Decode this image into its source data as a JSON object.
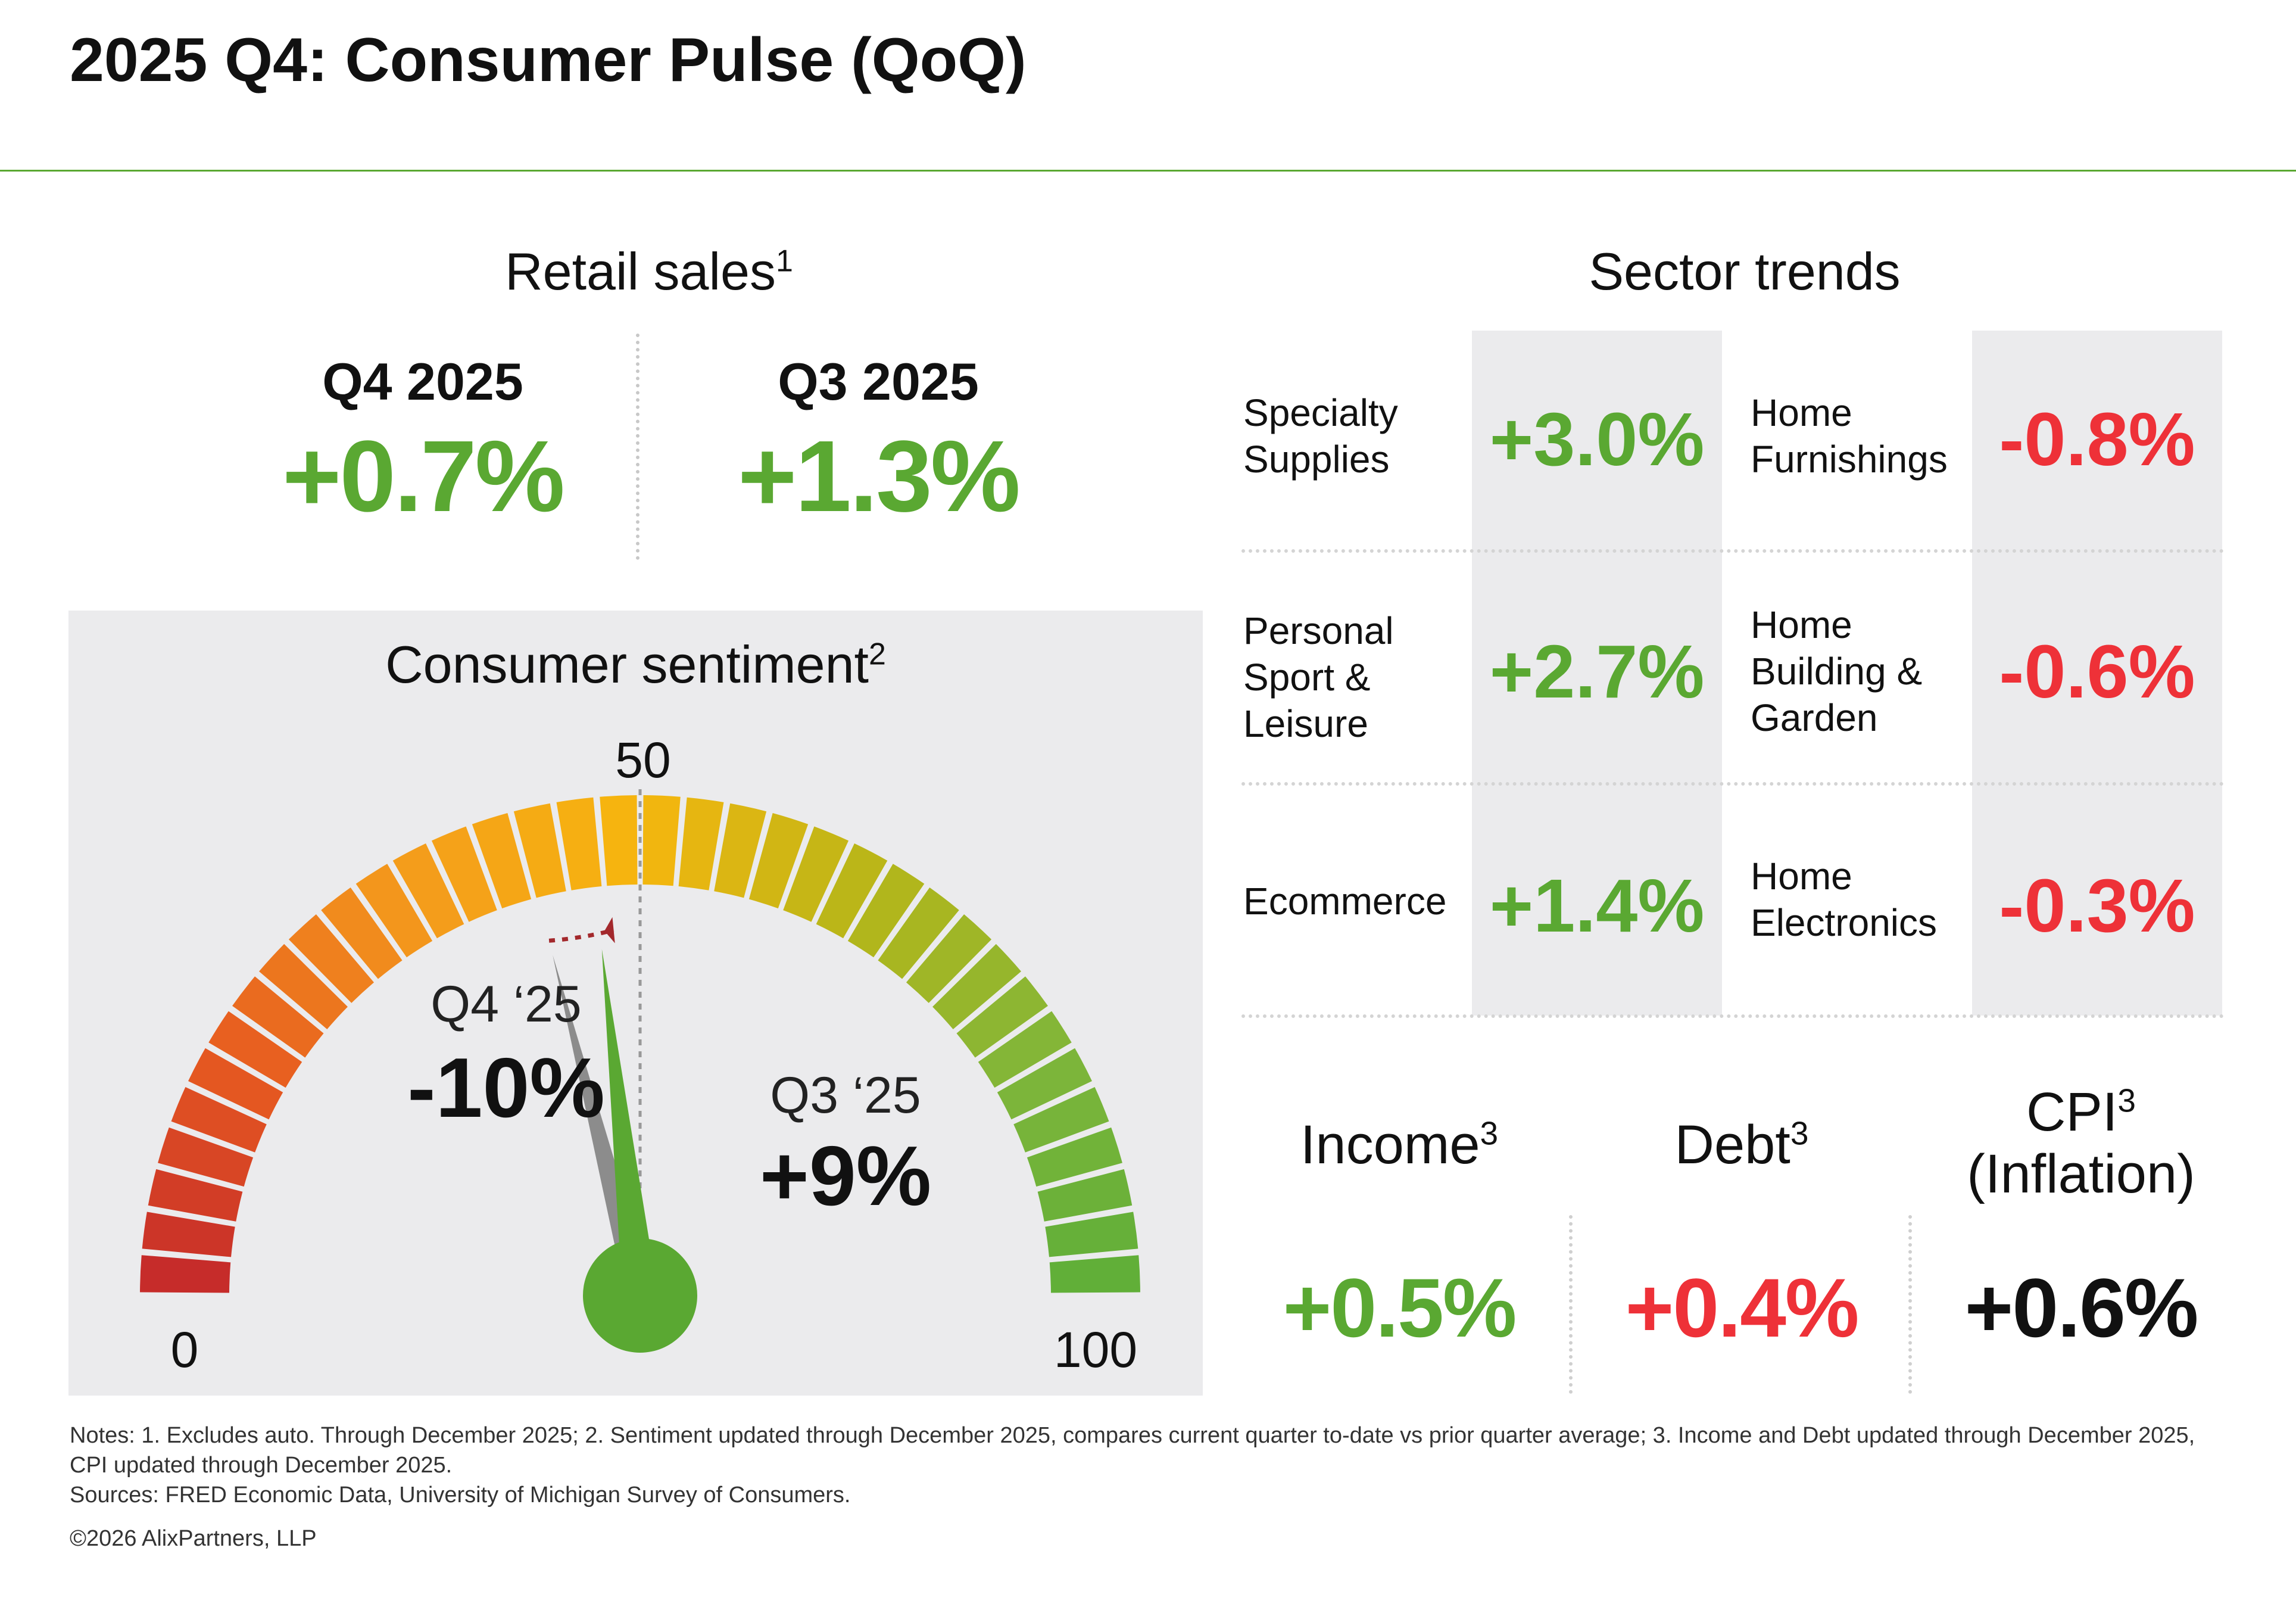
{
  "title": "2025 Q4: Consumer Pulse (QoQ)",
  "colors": {
    "positive": "#5aa832",
    "negative": "#ee3138",
    "neutral": "#111111",
    "rule": "#5aa832",
    "panel": "#ebebed",
    "gauge_gradient": [
      "#c3282b",
      "#e75b20",
      "#f49b1c",
      "#f6b60e",
      "#b6b619",
      "#7fb63a",
      "#5eae38"
    ]
  },
  "retail": {
    "title": "Retail sales",
    "title_sup": "1",
    "q4": {
      "period": "Q4 2025",
      "value": "+0.7%"
    },
    "q3": {
      "period": "Q3 2025",
      "value": "+1.3%"
    }
  },
  "sentiment": {
    "title": "Consumer sentiment",
    "title_sup": "2",
    "q4": {
      "label": "Q4 ‘25",
      "value": "-10%"
    },
    "q3": {
      "label": "Q3 ‘25",
      "value": "+9%"
    }
  },
  "sector": {
    "title": "Sector trends",
    "rows": [
      {
        "left_name": "Specialty\nSupplies",
        "left_value": "+3.0%",
        "right_name": "Home\nFurnishings",
        "right_value": "-0.8%"
      },
      {
        "left_name": "Personal\nSport &\nLeisure",
        "left_value": "+2.7%",
        "right_name": "Home\nBuilding &\nGarden",
        "right_value": "-0.6%"
      },
      {
        "left_name": "Ecommerce",
        "left_value": "+1.4%",
        "right_name": "Home\nElectronics",
        "right_value": "-0.3%"
      }
    ]
  },
  "macro": {
    "income": {
      "label": "Income",
      "sup": "3",
      "value": "+0.5%"
    },
    "debt": {
      "label": "Debt",
      "sup": "3",
      "value": "+0.4%"
    },
    "cpi": {
      "label": "CPI",
      "sup": "3",
      "label2": "(Inflation)",
      "value": "+0.6%"
    }
  },
  "notes": {
    "line1": "Notes: 1. Excludes auto. Through December 2025; 2. Sentiment updated through December 2025, compares current quarter to-date vs prior quarter average; 3. Income and Debt updated through December 2025, CPI updated through December 2025.",
    "line2": "Sources: FRED Economic Data, University of Michigan Survey of Consumers.",
    "line3": "©2026 AlixPartners, LLP"
  },
  "chart_data": [
    {
      "type": "bar",
      "categories": [
        "Q4 2025",
        "Q3 2025"
      ],
      "values": [
        0.7,
        1.3
      ],
      "title": "Retail sales",
      "ylabel": ""
    },
    {
      "type": "gauge",
      "title": "Consumer sentiment",
      "min": 0,
      "max": 100,
      "midpoint": 50,
      "tick_labels": [
        "0",
        "50",
        "100"
      ],
      "segments": 36,
      "needles": [
        {
          "name": "Q4 ‘25",
          "value": 46.5,
          "change": "-10%",
          "color": "#5aa832"
        },
        {
          "name": "Q3 ‘25",
          "value": 42,
          "change": "+9%",
          "color": "#8c8c8c"
        }
      ]
    },
    {
      "type": "table",
      "title": "Sector trends",
      "categories": [
        "Specialty Supplies",
        "Personal Sport & Leisure",
        "Ecommerce",
        "Home Furnishings",
        "Home Building & Garden",
        "Home Electronics"
      ],
      "values": [
        3.0,
        2.7,
        1.4,
        -0.8,
        -0.6,
        -0.3
      ]
    }
  ]
}
